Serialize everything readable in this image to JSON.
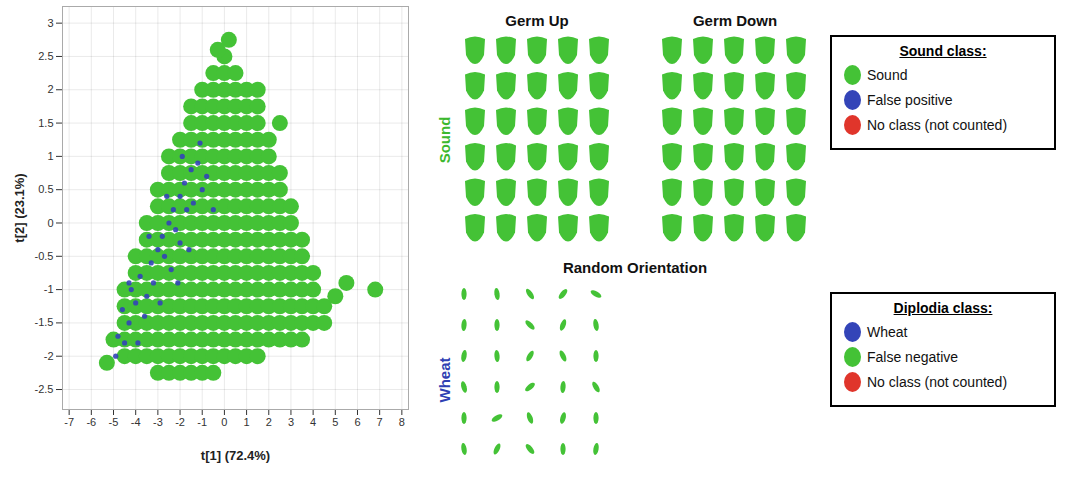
{
  "chart_data": {
    "type": "scatter",
    "xlabel": "t[1] (72.4%)",
    "ylabel": "t[2] (23.1%)",
    "xlim": [
      -7.3,
      8.3
    ],
    "ylim": [
      -2.8,
      3.25
    ],
    "xticks": [
      -7,
      -6,
      -5,
      -4,
      -3,
      -2,
      -1,
      0,
      1,
      2,
      3,
      4,
      5,
      6,
      7,
      8
    ],
    "yticks": [
      -2.5,
      -2,
      -1.5,
      -1,
      -0.5,
      0,
      0.5,
      1,
      1.5,
      2,
      2.5,
      3
    ],
    "grid": true,
    "series": [
      {
        "color": "#44c236",
        "marker": "circle",
        "values": [
          [
            0,
            2.5
          ],
          [
            -0.5,
            2.25
          ],
          [
            0,
            2.25
          ],
          [
            0.5,
            2.25
          ],
          [
            -1,
            2
          ],
          [
            -0.5,
            2
          ],
          [
            0,
            2
          ],
          [
            0.5,
            2
          ],
          [
            1,
            2
          ],
          [
            1.5,
            2
          ],
          [
            -1.5,
            1.75
          ],
          [
            -1,
            1.75
          ],
          [
            -0.5,
            1.75
          ],
          [
            0,
            1.75
          ],
          [
            0.5,
            1.75
          ],
          [
            1,
            1.75
          ],
          [
            1.5,
            1.75
          ],
          [
            -1.5,
            1.5
          ],
          [
            -1,
            1.5
          ],
          [
            -0.5,
            1.5
          ],
          [
            0,
            1.5
          ],
          [
            0.5,
            1.5
          ],
          [
            1,
            1.5
          ],
          [
            1.5,
            1.5
          ],
          [
            -2,
            1.25
          ],
          [
            -1.5,
            1.25
          ],
          [
            -1,
            1.25
          ],
          [
            -0.5,
            1.25
          ],
          [
            0,
            1.25
          ],
          [
            0.5,
            1.25
          ],
          [
            1,
            1.25
          ],
          [
            1.5,
            1.25
          ],
          [
            2,
            1.25
          ],
          [
            -2.5,
            1
          ],
          [
            -2,
            1
          ],
          [
            -1.5,
            1
          ],
          [
            -1,
            1
          ],
          [
            -0.5,
            1
          ],
          [
            0,
            1
          ],
          [
            0.5,
            1
          ],
          [
            1,
            1
          ],
          [
            1.5,
            1
          ],
          [
            2,
            1
          ],
          [
            -2.5,
            0.75
          ],
          [
            -2,
            0.75
          ],
          [
            -1.5,
            0.75
          ],
          [
            -1,
            0.75
          ],
          [
            -0.5,
            0.75
          ],
          [
            0,
            0.75
          ],
          [
            0.5,
            0.75
          ],
          [
            1,
            0.75
          ],
          [
            1.5,
            0.75
          ],
          [
            2,
            0.75
          ],
          [
            2.5,
            0.75
          ],
          [
            -3,
            0.5
          ],
          [
            -2.5,
            0.5
          ],
          [
            -2,
            0.5
          ],
          [
            -1.5,
            0.5
          ],
          [
            -1,
            0.5
          ],
          [
            -0.5,
            0.5
          ],
          [
            0,
            0.5
          ],
          [
            0.5,
            0.5
          ],
          [
            1,
            0.5
          ],
          [
            1.5,
            0.5
          ],
          [
            2,
            0.5
          ],
          [
            2.5,
            0.5
          ],
          [
            -3,
            0.25
          ],
          [
            -2.5,
            0.25
          ],
          [
            -2,
            0.25
          ],
          [
            -1.5,
            0.25
          ],
          [
            -1,
            0.25
          ],
          [
            -0.5,
            0.25
          ],
          [
            0,
            0.25
          ],
          [
            0.5,
            0.25
          ],
          [
            1,
            0.25
          ],
          [
            1.5,
            0.25
          ],
          [
            2,
            0.25
          ],
          [
            2.5,
            0.25
          ],
          [
            3,
            0.25
          ],
          [
            -3.5,
            0
          ],
          [
            -3,
            0
          ],
          [
            -2.5,
            0
          ],
          [
            -2,
            0
          ],
          [
            -1.5,
            0
          ],
          [
            -1,
            0
          ],
          [
            -0.5,
            0
          ],
          [
            0,
            0
          ],
          [
            0.5,
            0
          ],
          [
            1,
            0
          ],
          [
            1.5,
            0
          ],
          [
            2,
            0
          ],
          [
            2.5,
            0
          ],
          [
            3,
            0
          ],
          [
            -3.5,
            -0.25
          ],
          [
            -3,
            -0.25
          ],
          [
            -2.5,
            -0.25
          ],
          [
            -2,
            -0.25
          ],
          [
            -1.5,
            -0.25
          ],
          [
            -1,
            -0.25
          ],
          [
            -0.5,
            -0.25
          ],
          [
            0,
            -0.25
          ],
          [
            0.5,
            -0.25
          ],
          [
            1,
            -0.25
          ],
          [
            1.5,
            -0.25
          ],
          [
            2,
            -0.25
          ],
          [
            2.5,
            -0.25
          ],
          [
            3,
            -0.25
          ],
          [
            3.5,
            -0.25
          ],
          [
            -4,
            -0.5
          ],
          [
            -3.5,
            -0.5
          ],
          [
            -3,
            -0.5
          ],
          [
            -2.5,
            -0.5
          ],
          [
            -2,
            -0.5
          ],
          [
            -1.5,
            -0.5
          ],
          [
            -1,
            -0.5
          ],
          [
            -0.5,
            -0.5
          ],
          [
            0,
            -0.5
          ],
          [
            0.5,
            -0.5
          ],
          [
            1,
            -0.5
          ],
          [
            1.5,
            -0.5
          ],
          [
            2,
            -0.5
          ],
          [
            2.5,
            -0.5
          ],
          [
            3,
            -0.5
          ],
          [
            3.5,
            -0.5
          ],
          [
            -4,
            -0.75
          ],
          [
            -3.5,
            -0.75
          ],
          [
            -3,
            -0.75
          ],
          [
            -2.5,
            -0.75
          ],
          [
            -2,
            -0.75
          ],
          [
            -1.5,
            -0.75
          ],
          [
            -1,
            -0.75
          ],
          [
            -0.5,
            -0.75
          ],
          [
            0,
            -0.75
          ],
          [
            0.5,
            -0.75
          ],
          [
            1,
            -0.75
          ],
          [
            1.5,
            -0.75
          ],
          [
            2,
            -0.75
          ],
          [
            2.5,
            -0.75
          ],
          [
            3,
            -0.75
          ],
          [
            3.5,
            -0.75
          ],
          [
            4,
            -0.75
          ],
          [
            -4.5,
            -1
          ],
          [
            -4,
            -1
          ],
          [
            -3.5,
            -1
          ],
          [
            -3,
            -1
          ],
          [
            -2.5,
            -1
          ],
          [
            -2,
            -1
          ],
          [
            -1.5,
            -1
          ],
          [
            -1,
            -1
          ],
          [
            -0.5,
            -1
          ],
          [
            0,
            -1
          ],
          [
            0.5,
            -1
          ],
          [
            1,
            -1
          ],
          [
            1.5,
            -1
          ],
          [
            2,
            -1
          ],
          [
            2.5,
            -1
          ],
          [
            3,
            -1
          ],
          [
            3.5,
            -1
          ],
          [
            4,
            -1
          ],
          [
            -4.5,
            -1.25
          ],
          [
            -4,
            -1.25
          ],
          [
            -3.5,
            -1.25
          ],
          [
            -3,
            -1.25
          ],
          [
            -2.5,
            -1.25
          ],
          [
            -2,
            -1.25
          ],
          [
            -1.5,
            -1.25
          ],
          [
            -1,
            -1.25
          ],
          [
            -0.5,
            -1.25
          ],
          [
            0,
            -1.25
          ],
          [
            0.5,
            -1.25
          ],
          [
            1,
            -1.25
          ],
          [
            1.5,
            -1.25
          ],
          [
            2,
            -1.25
          ],
          [
            2.5,
            -1.25
          ],
          [
            3,
            -1.25
          ],
          [
            3.5,
            -1.25
          ],
          [
            4,
            -1.25
          ],
          [
            4.5,
            -1.25
          ],
          [
            -4.5,
            -1.5
          ],
          [
            -4,
            -1.5
          ],
          [
            -3.5,
            -1.5
          ],
          [
            -3,
            -1.5
          ],
          [
            -2.5,
            -1.5
          ],
          [
            -2,
            -1.5
          ],
          [
            -1.5,
            -1.5
          ],
          [
            -1,
            -1.5
          ],
          [
            -0.5,
            -1.5
          ],
          [
            0,
            -1.5
          ],
          [
            0.5,
            -1.5
          ],
          [
            1,
            -1.5
          ],
          [
            1.5,
            -1.5
          ],
          [
            2,
            -1.5
          ],
          [
            2.5,
            -1.5
          ],
          [
            3,
            -1.5
          ],
          [
            3.5,
            -1.5
          ],
          [
            4,
            -1.5
          ],
          [
            4.5,
            -1.5
          ],
          [
            -5,
            -1.75
          ],
          [
            -4.5,
            -1.75
          ],
          [
            -4,
            -1.75
          ],
          [
            -3.5,
            -1.75
          ],
          [
            -3,
            -1.75
          ],
          [
            -2.5,
            -1.75
          ],
          [
            -2,
            -1.75
          ],
          [
            -1.5,
            -1.75
          ],
          [
            -1,
            -1.75
          ],
          [
            -0.5,
            -1.75
          ],
          [
            0,
            -1.75
          ],
          [
            0.5,
            -1.75
          ],
          [
            1,
            -1.75
          ],
          [
            1.5,
            -1.75
          ],
          [
            2,
            -1.75
          ],
          [
            2.5,
            -1.75
          ],
          [
            3,
            -1.75
          ],
          [
            3.5,
            -1.75
          ],
          [
            -4.5,
            -2
          ],
          [
            -4,
            -2
          ],
          [
            -3.5,
            -2
          ],
          [
            -3,
            -2
          ],
          [
            -2.5,
            -2
          ],
          [
            -2,
            -2
          ],
          [
            -1.5,
            -2
          ],
          [
            -1,
            -2
          ],
          [
            -0.5,
            -2
          ],
          [
            0,
            -2
          ],
          [
            0.5,
            -2
          ],
          [
            1,
            -2
          ],
          [
            1.5,
            -2
          ],
          [
            -3,
            -2.25
          ],
          [
            -2.5,
            -2.25
          ],
          [
            -2,
            -2.25
          ],
          [
            -1.5,
            -2.25
          ],
          [
            -1,
            -2.25
          ],
          [
            -0.5,
            -2.25
          ],
          [
            0.2,
            2.75
          ],
          [
            -0.3,
            2.6
          ],
          [
            2.5,
            1.5
          ],
          [
            5,
            -1.1
          ],
          [
            6.8,
            -1.0
          ],
          [
            -5.3,
            -2.1
          ],
          [
            5.5,
            -0.9
          ]
        ]
      },
      {
        "color": "#3344b8",
        "marker": "circle",
        "values": [
          [
            -4.5,
            -1.8
          ],
          [
            -4.8,
            -1.7
          ],
          [
            -4.3,
            -1.5
          ],
          [
            -4,
            -1.2
          ],
          [
            -4.2,
            -1.0
          ],
          [
            -3.8,
            -0.8
          ],
          [
            -3.5,
            -1.1
          ],
          [
            -3.3,
            -0.6
          ],
          [
            -3,
            -0.4
          ],
          [
            -3.2,
            -0.9
          ],
          [
            -2.8,
            -0.2
          ],
          [
            -2.5,
            0
          ],
          [
            -2.7,
            -0.5
          ],
          [
            -2.3,
            0.2
          ],
          [
            -2,
            0.4
          ],
          [
            -2.2,
            -0.1
          ],
          [
            -1.8,
            0.6
          ],
          [
            -1.5,
            0.8
          ],
          [
            -1.7,
            0.2
          ],
          [
            -1.2,
            0.9
          ],
          [
            -1,
            0.5
          ],
          [
            -2.4,
            -0.7
          ],
          [
            -3.6,
            -1.4
          ],
          [
            -4.6,
            -1.3
          ],
          [
            -2.9,
            -1.2
          ],
          [
            -2,
            -0.3
          ],
          [
            -1.4,
            0.3
          ],
          [
            -0.8,
            0.7
          ],
          [
            -4.9,
            -2.0
          ],
          [
            -3.9,
            -1.8
          ],
          [
            -2.6,
            0.4
          ],
          [
            -1.9,
            1.0
          ],
          [
            -1.1,
            1.2
          ],
          [
            -3.4,
            -0.2
          ],
          [
            -4.3,
            -0.9
          ],
          [
            -2.1,
            -0.9
          ],
          [
            -0.5,
            0.2
          ],
          [
            -1.6,
            -0.4
          ]
        ]
      }
    ]
  },
  "groups": [
    {
      "label": "Sound",
      "label_color": "#3cb82e",
      "panels": [
        {
          "title": "Germ Up",
          "rows": 6,
          "cols": 5,
          "shape": "kernel",
          "color": "#44c236"
        },
        {
          "title": "Germ Down",
          "rows": 6,
          "cols": 5,
          "shape": "kernel",
          "color": "#44c236"
        }
      ]
    },
    {
      "label": "Wheat",
      "label_color": "#2f3fb3",
      "panels": [
        {
          "title": "Random Orientation",
          "rows": 6,
          "cols": 5,
          "shape": "grain",
          "color": "#44c236"
        }
      ]
    }
  ],
  "legends": [
    {
      "title": "Sound class:",
      "items": [
        {
          "label": "Sound",
          "color": "#44c236"
        },
        {
          "label": "False positive",
          "color": "#3344b8"
        },
        {
          "label": "No class (not counted)",
          "color": "#e0352b"
        }
      ]
    },
    {
      "title": "Diplodia class:",
      "items": [
        {
          "label": "Wheat",
          "color": "#3344b8"
        },
        {
          "label": "False negative",
          "color": "#44c236"
        },
        {
          "label": "No class (not counted)",
          "color": "#e0352b"
        }
      ]
    }
  ]
}
